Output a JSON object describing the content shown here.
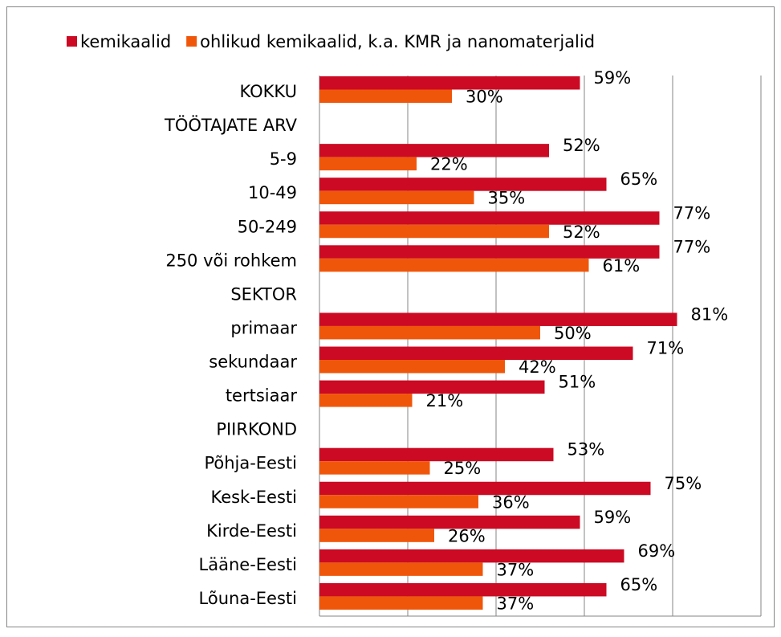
{
  "chart_data": {
    "type": "hbar",
    "categories": [
      "KOKKU",
      "TÖÖTAJATE ARV",
      "5-9",
      "10-49",
      "50-249",
      "250 või rohkem",
      "SEKTOR",
      "primaar",
      "sekundaar",
      "tertsiaar",
      "PIIRKOND",
      "Põhja-Eesti",
      "Kesk-Eesti",
      "Kirde-Eesti",
      "Lääne-Eesti",
      "Lõuna-Eesti"
    ],
    "series": [
      {
        "name": "kemikaalid",
        "color": "#cc0a23",
        "values": [
          59,
          null,
          52,
          65,
          77,
          77,
          null,
          81,
          71,
          51,
          null,
          53,
          75,
          59,
          69,
          65
        ],
        "value_labels": [
          "59%",
          null,
          "52%",
          "65%",
          "77%",
          "77%",
          null,
          "81%",
          "71%",
          "51%",
          null,
          "53%",
          "75%",
          "59%",
          "69%",
          "65%"
        ]
      },
      {
        "name": "ohlikud kemikaalid, k.a. KMR ja nanomaterjalid",
        "color": "#f0560a",
        "values": [
          30,
          null,
          22,
          35,
          52,
          61,
          null,
          50,
          42,
          21,
          null,
          25,
          36,
          26,
          37,
          37
        ],
        "value_labels": [
          "30%",
          null,
          "22%",
          "35%",
          "52%",
          "61%",
          null,
          "50%",
          "42%",
          "21%",
          null,
          "25%",
          "36%",
          "26%",
          "37%",
          "37%"
        ]
      }
    ],
    "xlim": [
      0,
      100
    ],
    "xticks": [
      0,
      20,
      40,
      60,
      80,
      100
    ],
    "tick_labels": false,
    "grid": true,
    "legend": "top"
  }
}
